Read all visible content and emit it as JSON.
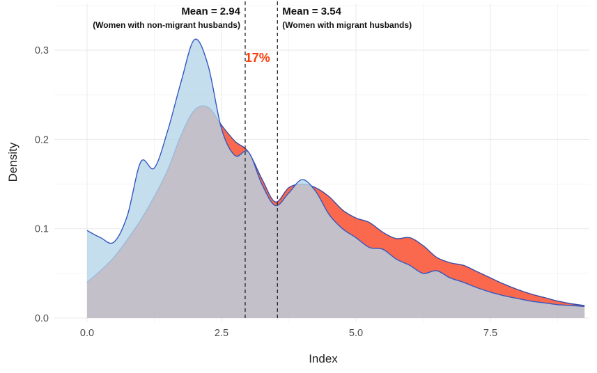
{
  "chart_data": {
    "type": "area",
    "subtype": "overlapping-density",
    "title": "",
    "xlabel": "Index",
    "ylabel": "Density",
    "xlim": [
      0,
      9.25
    ],
    "ylim": [
      0,
      0.33
    ],
    "grid": true,
    "legend_position": "none",
    "x_ticks": [
      0,
      2.5,
      5,
      7.5
    ],
    "x_tick_labels": [
      "0.0",
      "2.5",
      "5.0",
      "7.5"
    ],
    "y_ticks": [
      0,
      0.1,
      0.2,
      0.3
    ],
    "y_tick_labels": [
      "0.0",
      "0.1",
      "0.2",
      "0.3"
    ],
    "x": [
      0,
      0.25,
      0.5,
      0.75,
      1,
      1.25,
      1.5,
      1.75,
      2,
      2.25,
      2.5,
      2.75,
      3,
      3.25,
      3.5,
      3.75,
      4,
      4.25,
      4.5,
      4.75,
      5,
      5.25,
      5.5,
      5.75,
      6,
      6.25,
      6.5,
      6.75,
      7,
      7.25,
      7.5,
      7.75,
      8,
      8.25,
      8.5,
      8.75,
      9,
      9.25
    ],
    "series": [
      {
        "name": "Women with migrant husbands",
        "mean": 3.54,
        "fill": "#f94e2f",
        "fill_opacity": 0.85,
        "stroke": "#3a4da5",
        "values": [
          0.04,
          0.053,
          0.068,
          0.088,
          0.11,
          0.136,
          0.166,
          0.205,
          0.233,
          0.236,
          0.216,
          0.198,
          0.186,
          0.156,
          0.13,
          0.146,
          0.15,
          0.146,
          0.136,
          0.121,
          0.112,
          0.107,
          0.096,
          0.089,
          0.09,
          0.081,
          0.068,
          0.062,
          0.059,
          0.052,
          0.045,
          0.038,
          0.032,
          0.027,
          0.023,
          0.019,
          0.016,
          0.014
        ]
      },
      {
        "name": "Women with non-migrant husbands",
        "mean": 2.94,
        "fill": "#b5d6e9",
        "fill_opacity": 0.8,
        "stroke": "#3457c1",
        "values": [
          0.098,
          0.09,
          0.085,
          0.115,
          0.175,
          0.168,
          0.21,
          0.265,
          0.312,
          0.283,
          0.212,
          0.182,
          0.186,
          0.15,
          0.126,
          0.14,
          0.155,
          0.142,
          0.116,
          0.1,
          0.09,
          0.079,
          0.077,
          0.066,
          0.059,
          0.05,
          0.053,
          0.045,
          0.04,
          0.034,
          0.029,
          0.025,
          0.022,
          0.019,
          0.017,
          0.015,
          0.014,
          0.013
        ]
      }
    ],
    "vlines": [
      {
        "x": 2.94,
        "label": "Mean = 2.94",
        "sublabel": "(Women with non-migrant husbands)",
        "align": "right"
      },
      {
        "x": 3.54,
        "label": "Mean = 3.54",
        "sublabel": "(Women with migrant husbands)",
        "align": "left"
      }
    ],
    "overlap_label": {
      "text": "17%",
      "x": 3.17,
      "y": 0.287,
      "color": "#fb3d0c"
    }
  }
}
